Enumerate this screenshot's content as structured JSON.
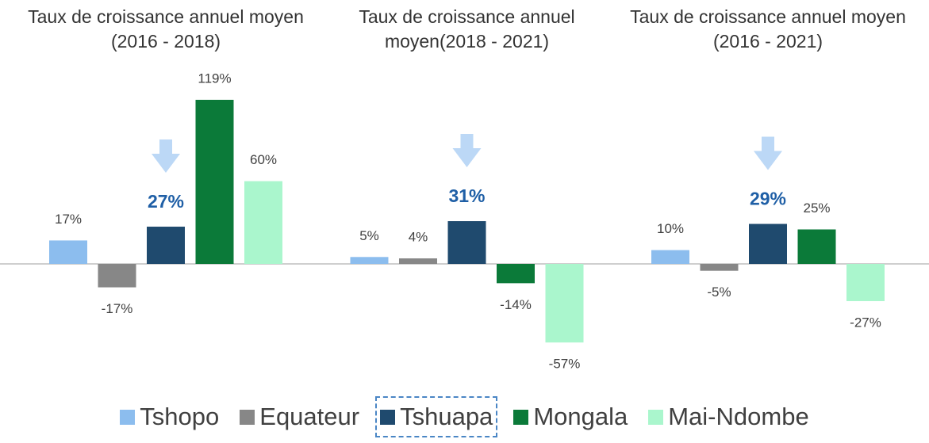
{
  "chart_data": {
    "type": "bar",
    "categories": [
      "Taux de croissance annuel moyen (2016 - 2018)",
      "Taux de croissance annuel moyen(2018 - 2021)",
      "Taux de croissance annuel moyen (2016 - 2021)"
    ],
    "series": [
      {
        "name": "Tshopo",
        "color": "#8cbdee",
        "values": [
          17,
          5,
          10
        ],
        "value_labels": [
          "17%",
          "5%",
          "10%"
        ]
      },
      {
        "name": "Equateur",
        "color": "#878787",
        "values": [
          -17,
          4,
          -5
        ],
        "value_labels": [
          "-17%",
          "4%",
          "-5%"
        ]
      },
      {
        "name": "Tshuapa",
        "color": "#1f4a6e",
        "values": [
          27,
          31,
          29
        ],
        "value_labels": [
          "27%",
          "31%",
          "29%"
        ]
      },
      {
        "name": "Mongala",
        "color": "#0b7a39",
        "values": [
          119,
          -14,
          25
        ],
        "value_labels": [
          "119%",
          "-14%",
          "25%"
        ]
      },
      {
        "name": "Mai-Ndombe",
        "color": "#aaf6cd",
        "values": [
          60,
          -57,
          -27
        ],
        "value_labels": [
          "60%",
          "-57%",
          "-27%"
        ]
      }
    ],
    "highlight": "Tshuapa"
  }
}
